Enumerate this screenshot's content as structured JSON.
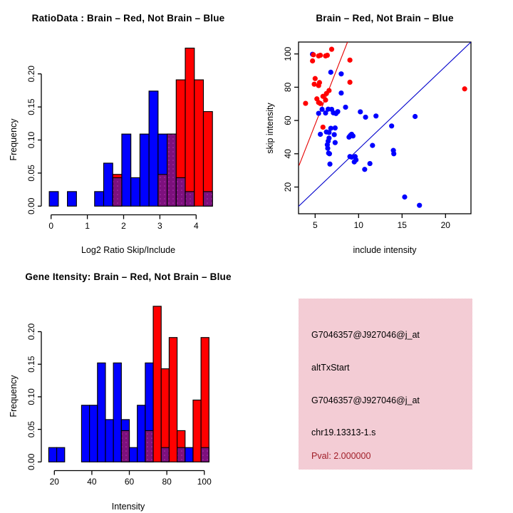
{
  "figure_bg": "#FFFFFF",
  "colors": {
    "brain_red": "#FF0000",
    "not_brain_blue": "#0000FF",
    "overlap_purple": "#7D107D",
    "overlap_dot": "#D94FD9",
    "axis_black": "#000000",
    "scatter_red_line": "#E60000",
    "scatter_blue_line": "#0000CC",
    "info_panel_pink": "#F3C9D2",
    "pval_dark_red": "#A01E28"
  },
  "chart_data": [
    {
      "id": "ratio-histogram",
      "type": "bar",
      "subtype": "overlaid-histogram",
      "title": "RatioData : Brain – Red, Not Brain – Blue",
      "xlabel": "Log2 Ratio Skip/Include",
      "ylabel": "Frequency",
      "x_ticks": [
        0,
        1,
        2,
        3,
        4
      ],
      "y_ticks": [
        0,
        0.05,
        0.1,
        0.15,
        0.2
      ],
      "y_tick_labels": [
        "0.00",
        "0.05",
        "0.10",
        "0.15",
        "0.20"
      ],
      "xlim": [
        -0.35,
        4.55
      ],
      "ylim": [
        0,
        0.245
      ],
      "bin_width": 0.25,
      "grid": false,
      "series_legend": {
        "red": "Brain",
        "blue": "Not Brain",
        "purple": "overlap of red and blue"
      },
      "bars": [
        {
          "x": -0.05,
          "blue": 0.022,
          "red": 0
        },
        {
          "x": 0.45,
          "blue": 0.022,
          "red": 0
        },
        {
          "x": 1.2,
          "blue": 0.022,
          "red": 0
        },
        {
          "x": 1.45,
          "blue": 0.065,
          "red": 0
        },
        {
          "x": 1.7,
          "blue": 0.043,
          "red": 0.048
        },
        {
          "x": 1.95,
          "blue": 0.109,
          "red": 0
        },
        {
          "x": 2.2,
          "blue": 0.043,
          "red": 0
        },
        {
          "x": 2.45,
          "blue": 0.109,
          "red": 0
        },
        {
          "x": 2.7,
          "blue": 0.174,
          "red": 0
        },
        {
          "x": 2.95,
          "blue": 0.109,
          "red": 0.048
        },
        {
          "x": 3.2,
          "blue": 0.109,
          "red": 0.109
        },
        {
          "x": 3.45,
          "blue": 0.043,
          "red": 0.191
        },
        {
          "x": 3.7,
          "blue": 0.022,
          "red": 0.239
        },
        {
          "x": 3.95,
          "blue": 0,
          "red": 0.191
        },
        {
          "x": 4.2,
          "blue": 0.022,
          "red": 0.143
        }
      ]
    },
    {
      "id": "intensity-scatter",
      "type": "scatter",
      "title": "Brain – Red, Not Brain – Blue",
      "xlabel": "include intensity",
      "ylabel": "skip intensity",
      "x_ticks": [
        5,
        10,
        15,
        20
      ],
      "y_ticks": [
        20,
        40,
        60,
        80,
        100
      ],
      "xlim": [
        3.05,
        23.05
      ],
      "ylim": [
        3.9,
        107.5
      ],
      "grid": false,
      "red_line": [
        [
          3.15,
          33.0
        ],
        [
          8.75,
          107.5
        ]
      ],
      "blue_line": [
        [
          3.05,
          8.2
        ],
        [
          23.0,
          107.5
        ]
      ],
      "red_points": [
        [
          3.9,
          70.3
        ],
        [
          4.7,
          95.8
        ],
        [
          4.8,
          99.5
        ],
        [
          5.4,
          98.8
        ],
        [
          5.6,
          99.2
        ],
        [
          6.2,
          98.8
        ],
        [
          6.4,
          99.2
        ],
        [
          6.9,
          102.8
        ],
        [
          5.0,
          85.2
        ],
        [
          4.9,
          81.8
        ],
        [
          5.5,
          82.8
        ],
        [
          5.4,
          81.0
        ],
        [
          9.0,
          96.3
        ],
        [
          9.0,
          83.0
        ],
        [
          5.2,
          73.0
        ],
        [
          5.4,
          70.8
        ],
        [
          5.6,
          70.2
        ],
        [
          5.9,
          74.5
        ],
        [
          6.2,
          72.3
        ],
        [
          6.3,
          76.2
        ],
        [
          6.6,
          78.0
        ],
        [
          5.9,
          56.0
        ],
        [
          22.2,
          79.0
        ]
      ],
      "blue_points": [
        [
          4.7,
          99.8
        ],
        [
          6.8,
          89.0
        ],
        [
          8.0,
          88.0
        ],
        [
          8.0,
          76.5
        ],
        [
          5.4,
          64.3
        ],
        [
          5.8,
          66.7
        ],
        [
          6.2,
          64.5
        ],
        [
          6.5,
          66.8
        ],
        [
          6.9,
          66.7
        ],
        [
          7.1,
          64.6
        ],
        [
          7.4,
          64.2
        ],
        [
          7.6,
          65.3
        ],
        [
          8.5,
          68.0
        ],
        [
          5.6,
          51.7
        ],
        [
          6.3,
          53.1
        ],
        [
          6.6,
          52.8
        ],
        [
          6.8,
          55.3
        ],
        [
          7.2,
          51.5
        ],
        [
          7.3,
          55.5
        ],
        [
          6.4,
          45.4
        ],
        [
          6.45,
          43.3
        ],
        [
          6.5,
          47.6
        ],
        [
          6.55,
          40.4
        ],
        [
          6.6,
          49.4
        ],
        [
          6.65,
          40.0
        ],
        [
          6.7,
          33.8
        ],
        [
          7.3,
          46.7
        ],
        [
          8.9,
          50.0
        ],
        [
          9.05,
          51.0
        ],
        [
          9.2,
          51.7
        ],
        [
          9.35,
          50.7
        ],
        [
          9.0,
          38.3
        ],
        [
          9.2,
          38.0
        ],
        [
          9.6,
          38.3
        ],
        [
          9.7,
          36.3
        ],
        [
          9.5,
          35.1
        ],
        [
          10.2,
          65.2
        ],
        [
          10.8,
          62.0
        ],
        [
          12.0,
          62.7
        ],
        [
          13.8,
          56.7
        ],
        [
          16.5,
          62.4
        ],
        [
          11.6,
          45.0
        ],
        [
          14.0,
          42.0
        ],
        [
          14.05,
          40.0
        ],
        [
          11.3,
          34.1
        ],
        [
          10.7,
          30.6
        ],
        [
          15.3,
          14.0
        ],
        [
          17.0,
          9.0
        ]
      ]
    },
    {
      "id": "gene-intensity-histogram",
      "type": "bar",
      "subtype": "overlaid-histogram",
      "title": "Gene Itensity: Brain – Red, Not Brain – Blue",
      "xlabel": "Intensity",
      "ylabel": "Frequency",
      "x_ticks": [
        20,
        40,
        60,
        80,
        100
      ],
      "y_ticks": [
        0,
        0.05,
        0.1,
        0.15,
        0.2
      ],
      "y_tick_labels": [
        "0.00",
        "0.05",
        "0.10",
        "0.15",
        "0.20"
      ],
      "xlim": [
        13.0,
        104.5
      ],
      "ylim": [
        0,
        0.245
      ],
      "bin_width": 4.25,
      "grid": false,
      "series_legend": {
        "red": "Brain",
        "blue": "Not Brain",
        "purple": "overlap of red and blue"
      },
      "bars": [
        {
          "x": 17.0,
          "blue": 0.022,
          "red": 0
        },
        {
          "x": 21.25,
          "blue": 0.022,
          "red": 0
        },
        {
          "x": 34.5,
          "blue": 0.087,
          "red": 0
        },
        {
          "x": 38.75,
          "blue": 0.087,
          "red": 0
        },
        {
          "x": 43.0,
          "blue": 0.152,
          "red": 0
        },
        {
          "x": 47.25,
          "blue": 0.065,
          "red": 0
        },
        {
          "x": 51.5,
          "blue": 0.152,
          "red": 0
        },
        {
          "x": 55.75,
          "blue": 0.065,
          "red": 0.048
        },
        {
          "x": 60.0,
          "blue": 0.022,
          "red": 0
        },
        {
          "x": 64.25,
          "blue": 0.087,
          "red": 0
        },
        {
          "x": 68.5,
          "blue": 0.152,
          "red": 0.048
        },
        {
          "x": 72.75,
          "blue": 0,
          "red": 0.239
        },
        {
          "x": 77.0,
          "blue": 0.022,
          "red": 0.143
        },
        {
          "x": 81.25,
          "blue": 0,
          "red": 0.191
        },
        {
          "x": 85.5,
          "blue": 0.022,
          "red": 0.048
        },
        {
          "x": 89.75,
          "blue": 0.022,
          "red": 0
        },
        {
          "x": 94.0,
          "blue": 0,
          "red": 0.095
        },
        {
          "x": 98.25,
          "blue": 0.022,
          "red": 0.191
        }
      ]
    }
  ],
  "info_panel": {
    "lines": [
      {
        "text": "G7046357@J927046@j_at"
      },
      {
        "text": "altTxStart"
      },
      {
        "text": "G7046357@J927046@j_at"
      },
      {
        "text": "chr19.13313-1.s"
      },
      {
        "text": "Pval: 2.000000"
      }
    ]
  }
}
